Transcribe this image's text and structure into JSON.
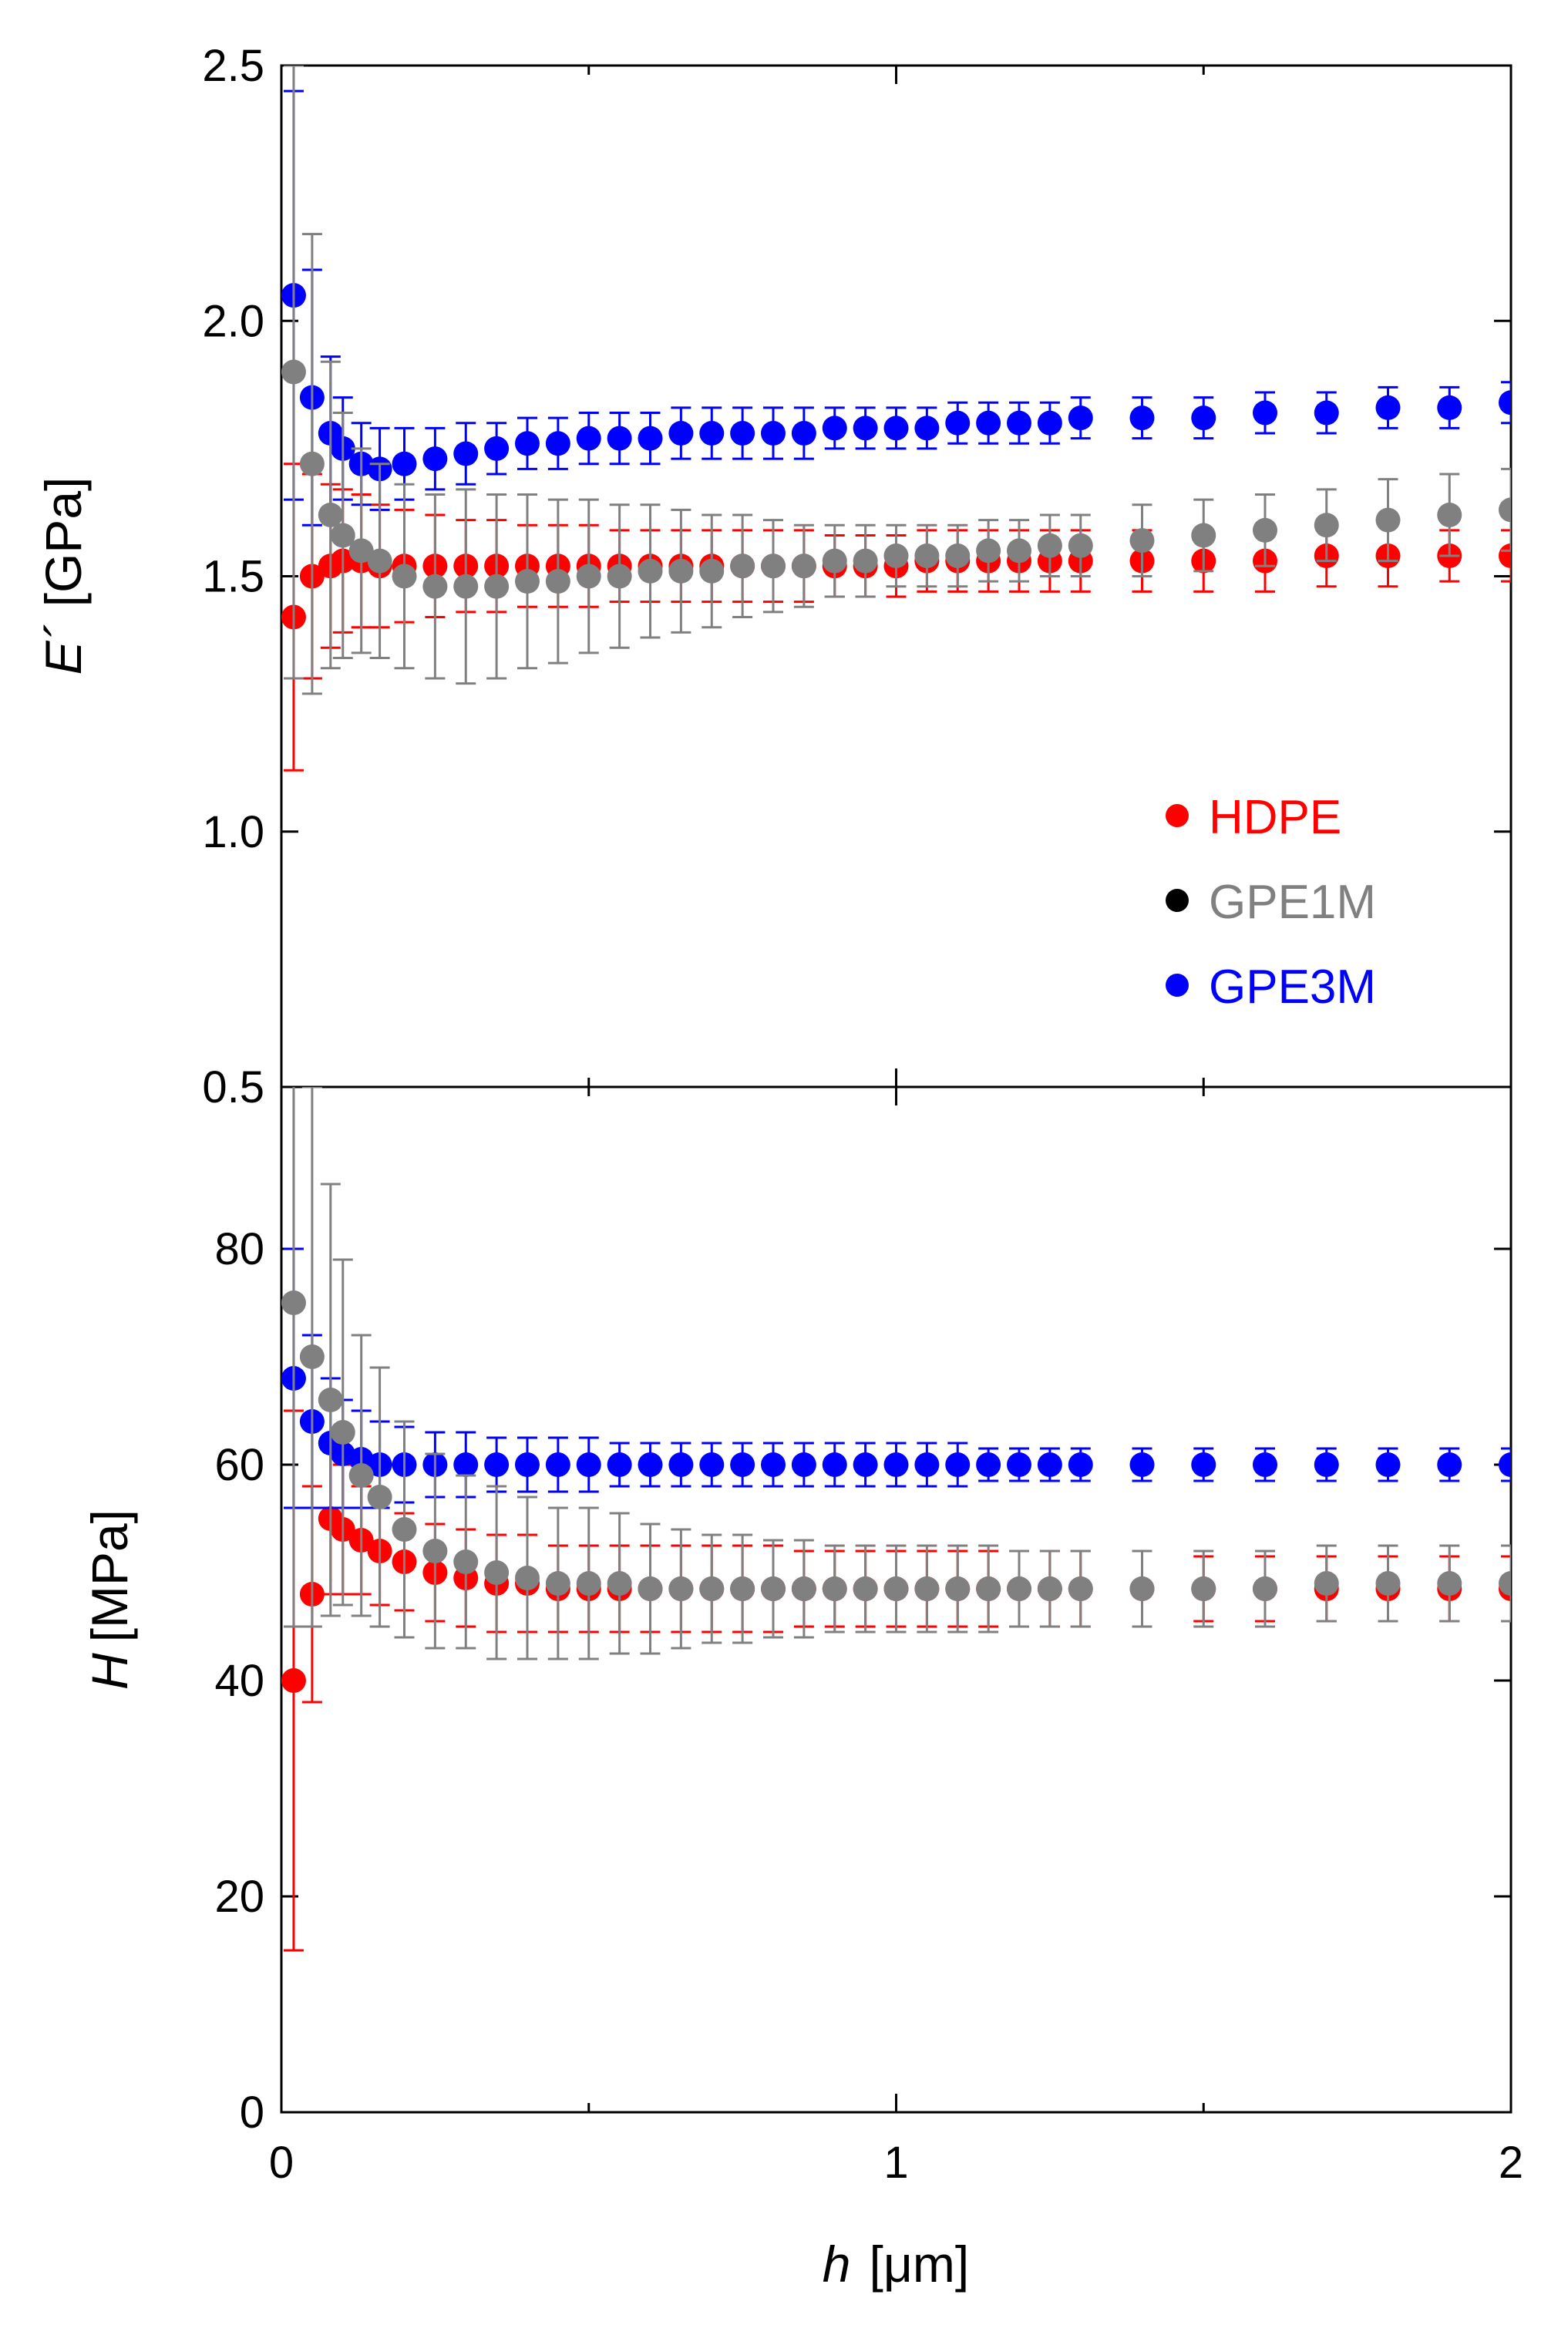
{
  "chart_data": [
    {
      "type": "scatter",
      "panel": "top",
      "ylabel_symbol": "E´",
      "ylabel_unit": "[GPa]",
      "xlim": [
        0,
        2
      ],
      "ylim": [
        0.5,
        2.5
      ],
      "yticks": [
        0.5,
        1.0,
        1.5,
        2.0,
        2.5
      ],
      "ytick_labels": [
        "0.5",
        "1.0",
        "1.5",
        "2.0",
        "2.5"
      ],
      "grid": false,
      "legend": {
        "placement": "right",
        "entries": [
          {
            "label": "HDPE",
            "color": "#ff0000"
          },
          {
            "label": "GPE1M",
            "color": "#808080",
            "marker_color": "#000000"
          },
          {
            "label": "GPE3M",
            "color": "#0000ff"
          }
        ]
      },
      "series": [
        {
          "name": "HDPE",
          "color": "#ff0000",
          "x": [
            0.02,
            0.05,
            0.08,
            0.1,
            0.13,
            0.16,
            0.2,
            0.25,
            0.3,
            0.35,
            0.4,
            0.45,
            0.5,
            0.55,
            0.6,
            0.65,
            0.7,
            0.75,
            0.8,
            0.85,
            0.9,
            0.95,
            1.0,
            1.05,
            1.1,
            1.15,
            1.2,
            1.25,
            1.3,
            1.4,
            1.5,
            1.6,
            1.7,
            1.8,
            1.9,
            2.0
          ],
          "y": [
            1.42,
            1.5,
            1.52,
            1.53,
            1.53,
            1.52,
            1.52,
            1.52,
            1.52,
            1.52,
            1.52,
            1.52,
            1.52,
            1.52,
            1.52,
            1.52,
            1.52,
            1.52,
            1.52,
            1.52,
            1.52,
            1.52,
            1.52,
            1.53,
            1.53,
            1.53,
            1.53,
            1.53,
            1.53,
            1.53,
            1.53,
            1.53,
            1.54,
            1.54,
            1.54,
            1.54
          ],
          "err": [
            0.3,
            0.2,
            0.16,
            0.14,
            0.13,
            0.12,
            0.11,
            0.1,
            0.09,
            0.09,
            0.08,
            0.08,
            0.08,
            0.07,
            0.07,
            0.07,
            0.07,
            0.07,
            0.07,
            0.07,
            0.06,
            0.06,
            0.06,
            0.06,
            0.06,
            0.06,
            0.06,
            0.06,
            0.06,
            0.06,
            0.06,
            0.06,
            0.06,
            0.06,
            0.05,
            0.05
          ]
        },
        {
          "name": "GPE1M",
          "color": "#808080",
          "x": [
            0.02,
            0.05,
            0.08,
            0.1,
            0.13,
            0.16,
            0.2,
            0.25,
            0.3,
            0.35,
            0.4,
            0.45,
            0.5,
            0.55,
            0.6,
            0.65,
            0.7,
            0.75,
            0.8,
            0.85,
            0.9,
            0.95,
            1.0,
            1.05,
            1.1,
            1.15,
            1.2,
            1.25,
            1.3,
            1.4,
            1.5,
            1.6,
            1.7,
            1.8,
            1.9,
            2.0
          ],
          "y": [
            1.9,
            1.72,
            1.62,
            1.58,
            1.55,
            1.53,
            1.5,
            1.48,
            1.48,
            1.48,
            1.49,
            1.49,
            1.5,
            1.5,
            1.51,
            1.51,
            1.51,
            1.52,
            1.52,
            1.52,
            1.53,
            1.53,
            1.54,
            1.54,
            1.54,
            1.55,
            1.55,
            1.56,
            1.56,
            1.57,
            1.58,
            1.59,
            1.6,
            1.61,
            1.62,
            1.63
          ],
          "err": [
            0.6,
            0.45,
            0.3,
            0.24,
            0.2,
            0.19,
            0.18,
            0.18,
            0.19,
            0.18,
            0.17,
            0.16,
            0.15,
            0.14,
            0.13,
            0.12,
            0.11,
            0.1,
            0.09,
            0.08,
            0.07,
            0.07,
            0.06,
            0.06,
            0.06,
            0.06,
            0.06,
            0.06,
            0.06,
            0.07,
            0.07,
            0.07,
            0.07,
            0.08,
            0.08,
            0.08
          ]
        },
        {
          "name": "GPE3M",
          "color": "#0000ff",
          "x": [
            0.02,
            0.05,
            0.08,
            0.1,
            0.13,
            0.16,
            0.2,
            0.25,
            0.3,
            0.35,
            0.4,
            0.45,
            0.5,
            0.55,
            0.6,
            0.65,
            0.7,
            0.75,
            0.8,
            0.85,
            0.9,
            0.95,
            1.0,
            1.05,
            1.1,
            1.15,
            1.2,
            1.25,
            1.3,
            1.4,
            1.5,
            1.6,
            1.7,
            1.8,
            1.9,
            2.0
          ],
          "y": [
            2.05,
            1.85,
            1.78,
            1.75,
            1.72,
            1.71,
            1.72,
            1.73,
            1.74,
            1.75,
            1.76,
            1.76,
            1.77,
            1.77,
            1.77,
            1.78,
            1.78,
            1.78,
            1.78,
            1.78,
            1.79,
            1.79,
            1.79,
            1.79,
            1.8,
            1.8,
            1.8,
            1.8,
            1.81,
            1.81,
            1.81,
            1.82,
            1.82,
            1.83,
            1.83,
            1.84
          ],
          "err": [
            0.4,
            0.25,
            0.15,
            0.1,
            0.08,
            0.08,
            0.07,
            0.06,
            0.06,
            0.05,
            0.05,
            0.05,
            0.05,
            0.05,
            0.05,
            0.05,
            0.05,
            0.05,
            0.05,
            0.05,
            0.04,
            0.04,
            0.04,
            0.04,
            0.04,
            0.04,
            0.04,
            0.04,
            0.04,
            0.04,
            0.04,
            0.04,
            0.04,
            0.04,
            0.04,
            0.04
          ]
        }
      ]
    },
    {
      "type": "scatter",
      "panel": "bottom",
      "ylabel_symbol": "H",
      "ylabel_unit": "[MPa]",
      "xlabel_symbol": "h",
      "xlabel_unit": "[μm]",
      "xlim": [
        0,
        2
      ],
      "ylim": [
        0,
        95
      ],
      "xticks": [
        0,
        1,
        2
      ],
      "xtick_labels": [
        "0",
        "1",
        "2"
      ],
      "yticks": [
        0,
        20,
        40,
        60,
        80
      ],
      "ytick_labels": [
        "0",
        "20",
        "40",
        "60",
        "80"
      ],
      "grid": false,
      "series": [
        {
          "name": "HDPE",
          "color": "#ff0000",
          "x": [
            0.02,
            0.05,
            0.08,
            0.1,
            0.13,
            0.16,
            0.2,
            0.25,
            0.3,
            0.35,
            0.4,
            0.45,
            0.5,
            0.55,
            0.6,
            0.65,
            0.7,
            0.75,
            0.8,
            0.85,
            0.9,
            0.95,
            1.0,
            1.05,
            1.1,
            1.15,
            1.2,
            1.25,
            1.3,
            1.4,
            1.5,
            1.6,
            1.7,
            1.8,
            1.9,
            2.0
          ],
          "y": [
            40,
            48,
            55,
            54,
            53,
            52,
            51,
            50,
            49.5,
            49,
            49,
            48.5,
            48.5,
            48.5,
            48.5,
            48.5,
            48.5,
            48.5,
            48.5,
            48.5,
            48.5,
            48.5,
            48.5,
            48.5,
            48.5,
            48.5,
            48.5,
            48.5,
            48.5,
            48.5,
            48.5,
            48.5,
            48.5,
            48.5,
            48.5,
            48.5
          ],
          "err": [
            25,
            10,
            7,
            6,
            5,
            5,
            4.5,
            4.5,
            4.5,
            4.5,
            4.5,
            4,
            4,
            4,
            4,
            4,
            4,
            4,
            4,
            3.5,
            3.5,
            3.5,
            3.5,
            3.5,
            3.5,
            3.5,
            3.5,
            3.5,
            3.5,
            3.5,
            3,
            3,
            3,
            3,
            3,
            3
          ]
        },
        {
          "name": "GPE1M",
          "color": "#808080",
          "x": [
            0.02,
            0.05,
            0.08,
            0.1,
            0.13,
            0.16,
            0.2,
            0.25,
            0.3,
            0.35,
            0.4,
            0.45,
            0.5,
            0.55,
            0.6,
            0.65,
            0.7,
            0.75,
            0.8,
            0.85,
            0.9,
            0.95,
            1.0,
            1.05,
            1.1,
            1.15,
            1.2,
            1.25,
            1.3,
            1.4,
            1.5,
            1.6,
            1.7,
            1.8,
            1.9,
            2.0
          ],
          "y": [
            75,
            70,
            66,
            63,
            59,
            57,
            54,
            52,
            51,
            50,
            49.5,
            49,
            49,
            49,
            48.5,
            48.5,
            48.5,
            48.5,
            48.5,
            48.5,
            48.5,
            48.5,
            48.5,
            48.5,
            48.5,
            48.5,
            48.5,
            48.5,
            48.5,
            48.5,
            48.5,
            48.5,
            49,
            49,
            49,
            49
          ],
          "err": [
            30,
            25,
            20,
            16,
            13,
            12,
            10,
            9,
            8,
            8,
            7.5,
            7,
            7,
            6.5,
            6,
            5.5,
            5,
            5,
            4.5,
            4.5,
            4,
            4,
            4,
            4,
            4,
            4,
            3.5,
            3.5,
            3.5,
            3.5,
            3.5,
            3.5,
            3.5,
            3.5,
            3.5,
            3.5
          ]
        },
        {
          "name": "GPE3M",
          "color": "#0000ff",
          "x": [
            0.02,
            0.05,
            0.08,
            0.1,
            0.13,
            0.16,
            0.2,
            0.25,
            0.3,
            0.35,
            0.4,
            0.45,
            0.5,
            0.55,
            0.6,
            0.65,
            0.7,
            0.75,
            0.8,
            0.85,
            0.9,
            0.95,
            1.0,
            1.05,
            1.1,
            1.15,
            1.2,
            1.25,
            1.3,
            1.4,
            1.5,
            1.6,
            1.7,
            1.8,
            1.9,
            2.0
          ],
          "y": [
            68,
            64,
            62,
            61,
            60.5,
            60,
            60,
            60,
            60,
            60,
            60,
            60,
            60,
            60,
            60,
            60,
            60,
            60,
            60,
            60,
            60,
            60,
            60,
            60,
            60,
            60,
            60,
            60,
            60,
            60,
            60,
            60,
            60,
            60,
            60,
            60
          ],
          "err": [
            12,
            8,
            6,
            5,
            4.5,
            4,
            3.5,
            3,
            3,
            2.5,
            2.5,
            2.5,
            2.5,
            2,
            2,
            2,
            2,
            2,
            2,
            2,
            2,
            2,
            2,
            2,
            2,
            1.5,
            1.5,
            1.5,
            1.5,
            1.5,
            1.5,
            1.5,
            1.5,
            1.5,
            1.5,
            1.5
          ]
        }
      ]
    }
  ]
}
